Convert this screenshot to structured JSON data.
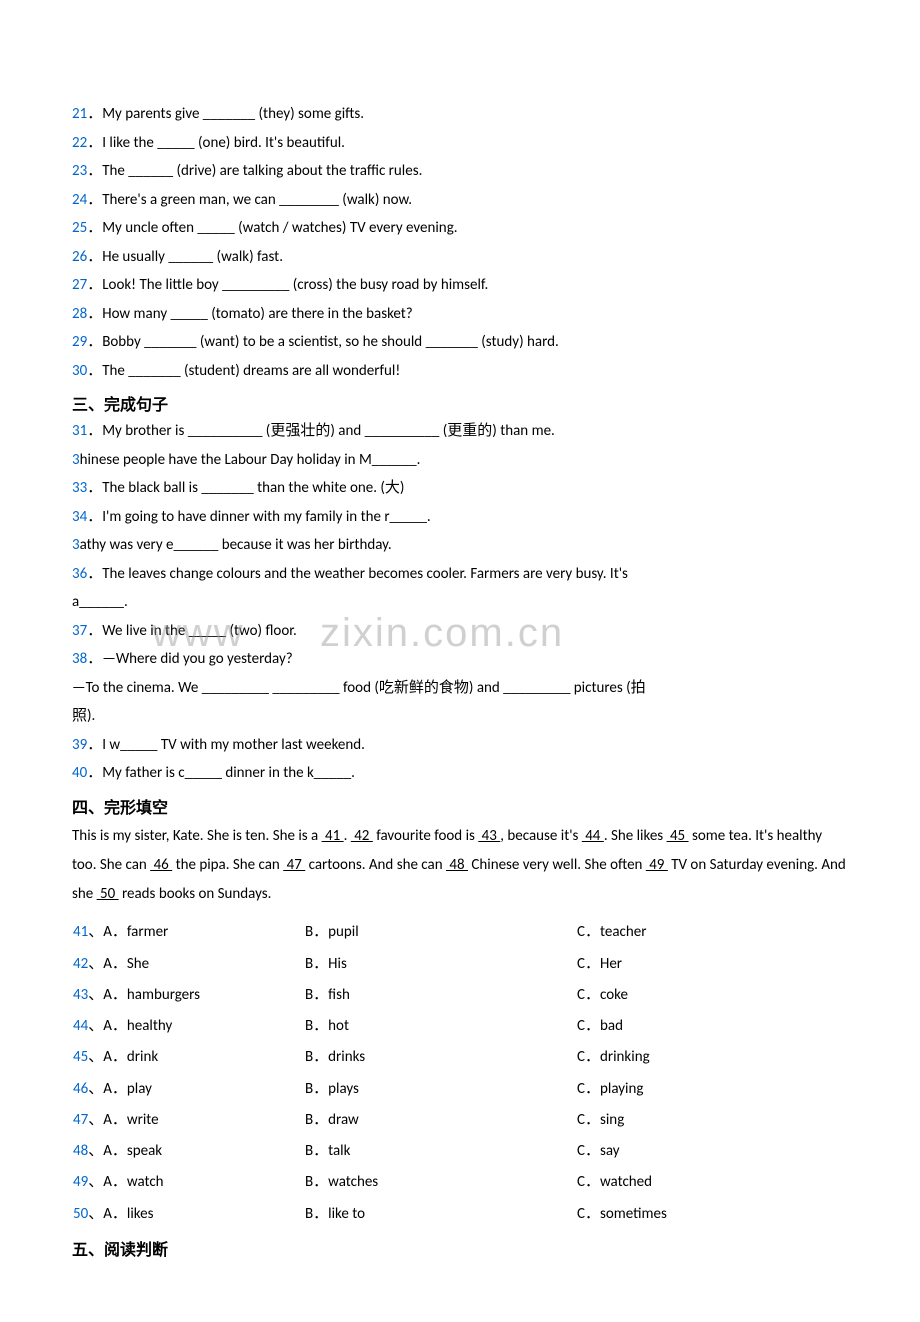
{
  "colors": {
    "link": "#0066cc",
    "text": "#000000",
    "watermark": "#999999",
    "bg": "#ffffff"
  },
  "fontsize_pt": 12,
  "questions_a": [
    {
      "n": "21",
      "text": "My parents give _______ (they) some gifts."
    },
    {
      "n": "22",
      "text": "I like the _____ (one) bird. It's beautiful."
    },
    {
      "n": "23",
      "text": "The ______ (drive) are talking about the traffic rules."
    },
    {
      "n": "24",
      "text": "There's a green man, we can ________ (walk) now."
    },
    {
      "n": "25",
      "text": "My uncle often _____ (watch / watches) TV every evening."
    },
    {
      "n": "26",
      "text": "He usually ______ (walk) fast."
    },
    {
      "n": "27",
      "text": "Look! The little boy _________ (cross) the busy road by himself."
    },
    {
      "n": "28",
      "text": "How many _____ (tomato) are there in the basket?"
    },
    {
      "n": "29",
      "text": "Bobby _______ (want) to be a scientist, so he should _______ (study) hard."
    },
    {
      "n": "30",
      "text": "The _______ (student) dreams are all wonderful!"
    }
  ],
  "section3": "三、完成句子",
  "questions_b": [
    {
      "n": "31",
      "text": "My brother is __________ (更强壮的) and __________ (更重的) than me."
    },
    {
      "n": "3",
      "text": "hinese people have the Labour Day holiday in M______."
    },
    {
      "n": "33",
      "text": "The black ball is _______ than the white one. (大)"
    },
    {
      "n": "34",
      "text": "I'm going to have dinner with my family in the r_____."
    },
    {
      "n": "3",
      "text": "athy was very e______ because it was her birthday."
    },
    {
      "n": "36",
      "text": "The leaves change colours and the weather becomes cooler. Farmers are very busy. It's"
    },
    {
      "n": "37",
      "text": "We live in the _____ (two) floor."
    },
    {
      "n": "38",
      "text": "—Where did you go yesterday?"
    }
  ],
  "line_a_cont": "a______.",
  "line_38_cont1": "—To the cinema. We _________  _________ food (吃新鲜的食物) and _________ pictures (拍",
  "line_38_cont2": "照).",
  "questions_c": [
    {
      "n": "39",
      "text": "I w_____ TV with my mother last weekend."
    },
    {
      "n": "40",
      "text": "My father is c_____ dinner in the k_____."
    }
  ],
  "section4": "四、完形填空",
  "cloze_text": {
    "pre": "This is my sister, Kate. She is ten. She is a ",
    "parts": [
      "41",
      ". ",
      "42",
      " favourite food is ",
      "43",
      ", because it's ",
      "44",
      ". She likes ",
      "45",
      " some tea. It's healthy too. She can ",
      "46",
      " the pipa. She can ",
      "47",
      " cartoons. And she can ",
      "48",
      " Chinese very well. She often ",
      "49",
      " TV on Saturday evening. And she ",
      "50",
      " reads books on Sundays."
    ]
  },
  "options": [
    {
      "n": "41",
      "a": "farmer",
      "b": "pupil",
      "c": "teacher"
    },
    {
      "n": "42",
      "a": "She",
      "b": "His",
      "c": "Her"
    },
    {
      "n": "43",
      "a": "hamburgers",
      "b": "fish",
      "c": "coke"
    },
    {
      "n": "44",
      "a": "healthy",
      "b": "hot",
      "c": "bad"
    },
    {
      "n": "45",
      "a": "drink",
      "b": "drinks",
      "c": "drinking"
    },
    {
      "n": "46",
      "a": "play",
      "b": "plays",
      "c": "playing"
    },
    {
      "n": "47",
      "a": "write",
      "b": "draw",
      "c": "sing"
    },
    {
      "n": "48",
      "a": "speak",
      "b": "talk",
      "c": "say"
    },
    {
      "n": "49",
      "a": "watch",
      "b": "watches",
      "c": "watched"
    },
    {
      "n": "50",
      "a": "likes",
      "b": "like to",
      "c": "sometimes"
    }
  ],
  "section5": "五、阅读判断",
  "watermark_a": "www",
  "watermark_b": "zixin.com.cn"
}
